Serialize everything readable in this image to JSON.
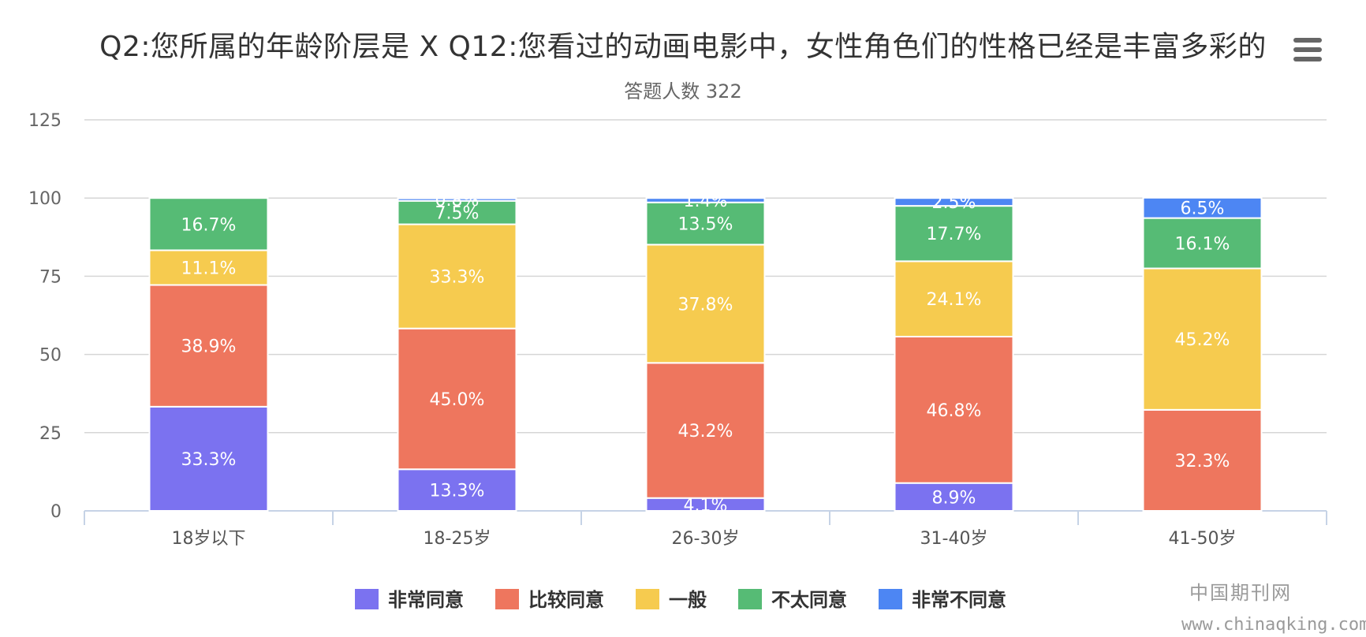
{
  "chart_data": {
    "type": "bar",
    "stacked": true,
    "title": "Q2:您所属的年龄阶层是 X Q12:您看过的动画电影中，女性角色们的性格已经是丰富多彩的",
    "subtitle": "答题人数 322",
    "xlabel": "",
    "ylabel": "",
    "ylim": [
      0,
      125
    ],
    "yticks": [
      0,
      25,
      50,
      75,
      100,
      125
    ],
    "grid": true,
    "legend_position": "bottom",
    "categories": [
      "18岁以下",
      "18-25岁",
      "26-30岁",
      "31-40岁",
      "41-50岁"
    ],
    "series": [
      {
        "name": "非常同意",
        "color": "#7b72f0",
        "values": [
          33.3,
          13.3,
          4.1,
          8.9,
          0
        ],
        "labels": [
          "33.3%",
          "13.3%",
          "4.1%",
          "8.9%",
          ""
        ]
      },
      {
        "name": "比较同意",
        "color": "#ee765e",
        "values": [
          38.9,
          45.0,
          43.2,
          46.8,
          32.3
        ],
        "labels": [
          "38.9%",
          "45.0%",
          "43.2%",
          "46.8%",
          "32.3%"
        ]
      },
      {
        "name": "一般",
        "color": "#f6cb4f",
        "values": [
          11.1,
          33.3,
          37.8,
          24.1,
          45.2
        ],
        "labels": [
          "11.1%",
          "33.3%",
          "37.8%",
          "24.1%",
          "45.2%"
        ]
      },
      {
        "name": "不太同意",
        "color": "#56bb75",
        "values": [
          16.7,
          7.5,
          13.5,
          17.7,
          16.1
        ],
        "labels": [
          "16.7%",
          "7.5%",
          "13.5%",
          "17.7%",
          "16.1%"
        ]
      },
      {
        "name": "非常不同意",
        "color": "#4d86f3",
        "values": [
          0,
          0.8,
          1.4,
          2.5,
          6.5
        ],
        "labels": [
          "",
          "0.8%",
          "1.4%",
          "2.5%",
          "6.5%"
        ]
      }
    ]
  },
  "menu": {
    "icon": "hamburger-menu-icon"
  },
  "watermark": {
    "site_name": "中国期刊网",
    "url": "www.chinaqking.com"
  }
}
